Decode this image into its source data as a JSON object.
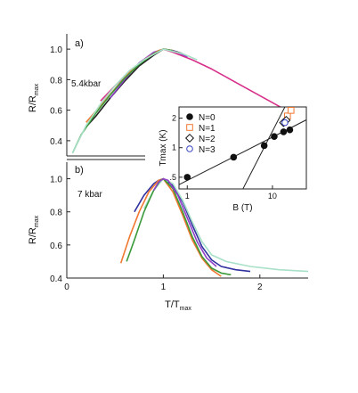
{
  "figure": {
    "panels": {
      "a": {
        "letter": "a)",
        "condition": "5.4kbar"
      },
      "b": {
        "letter": "b)",
        "condition": "7 kbar"
      }
    },
    "ylabel_main": "R/R",
    "ylabel_sub": "max",
    "xlabel_main": "T/T",
    "xlabel_sub": "max"
  },
  "chart_data": [
    {
      "panel": "a",
      "type": "line",
      "title": "",
      "condition": "5.4kbar",
      "ylabel": "R/Rmax",
      "ylim": [
        0.3,
        1.1
      ],
      "xlim": [
        0,
        2.5
      ],
      "yticks": [
        0.4,
        0.6,
        0.8,
        1.0
      ],
      "yticklabels": [
        "0.4",
        "0.6",
        "0.8",
        "1.0"
      ],
      "grid": false,
      "series": [
        {
          "color": "#d8308a",
          "points": [
            [
              0.35,
              0.66
            ],
            [
              0.5,
              0.76
            ],
            [
              0.65,
              0.85
            ],
            [
              0.8,
              0.93
            ],
            [
              0.9,
              0.97
            ],
            [
              1.0,
              1.0
            ],
            [
              1.1,
              0.98
            ],
            [
              1.3,
              0.93
            ],
            [
              1.5,
              0.87
            ],
            [
              1.7,
              0.8
            ],
            [
              1.9,
              0.73
            ],
            [
              2.1,
              0.66
            ],
            [
              2.3,
              0.59
            ],
            [
              2.45,
              0.54
            ]
          ]
        },
        {
          "color": "#222222",
          "points": [
            [
              0.2,
              0.49
            ],
            [
              0.3,
              0.56
            ],
            [
              0.45,
              0.68
            ],
            [
              0.6,
              0.79
            ],
            [
              0.75,
              0.89
            ],
            [
              0.9,
              0.96
            ],
            [
              1.0,
              1.0
            ],
            [
              1.1,
              0.99
            ],
            [
              1.2,
              0.97
            ]
          ]
        },
        {
          "color": "#9040c8",
          "points": [
            [
              0.45,
              0.68
            ],
            [
              0.6,
              0.8
            ],
            [
              0.75,
              0.91
            ],
            [
              0.9,
              0.98
            ],
            [
              1.0,
              1.0
            ],
            [
              1.1,
              0.99
            ],
            [
              1.25,
              0.95
            ]
          ]
        },
        {
          "color": "#f07830",
          "points": [
            [
              0.2,
              0.52
            ],
            [
              0.35,
              0.63
            ],
            [
              0.5,
              0.74
            ],
            [
              0.65,
              0.85
            ],
            [
              0.8,
              0.93
            ],
            [
              0.95,
              0.99
            ],
            [
              1.0,
              1.0
            ],
            [
              1.1,
              0.99
            ]
          ]
        },
        {
          "color": "#3a9a3a",
          "points": [
            [
              0.06,
              0.32
            ],
            [
              0.15,
              0.44
            ],
            [
              0.3,
              0.58
            ],
            [
              0.45,
              0.7
            ],
            [
              0.6,
              0.81
            ],
            [
              0.75,
              0.9
            ],
            [
              0.9,
              0.97
            ],
            [
              1.0,
              1.0
            ],
            [
              1.1,
              0.99
            ]
          ]
        },
        {
          "color": "#a8e0c8",
          "points": [
            [
              0.06,
              0.32
            ],
            [
              0.2,
              0.5
            ],
            [
              0.35,
              0.64
            ],
            [
              0.5,
              0.76
            ],
            [
              0.65,
              0.86
            ],
            [
              0.8,
              0.93
            ],
            [
              1.0,
              1.0
            ],
            [
              1.2,
              0.97
            ],
            [
              1.35,
              0.93
            ]
          ]
        }
      ]
    },
    {
      "panel": "b",
      "type": "line",
      "title": "",
      "condition": "7 kbar",
      "xlabel": "T/Tmax",
      "ylabel": "R/Rmax",
      "xlim": [
        0,
        2.5
      ],
      "ylim": [
        0.4,
        1.1
      ],
      "xticks": [
        0,
        1,
        2
      ],
      "xticklabels": [
        "0",
        "1",
        "2"
      ],
      "yticks": [
        0.4,
        0.6,
        0.8,
        1.0
      ],
      "yticklabels": [
        "0.4",
        "0.6",
        "0.8",
        "1.0"
      ],
      "grid": false,
      "series": [
        {
          "color": "#3030a0",
          "points": [
            [
              0.7,
              0.8
            ],
            [
              0.8,
              0.9
            ],
            [
              0.9,
              0.97
            ],
            [
              0.95,
              0.99
            ],
            [
              1.0,
              1.0
            ],
            [
              1.1,
              0.96
            ],
            [
              1.2,
              0.86
            ],
            [
              1.3,
              0.72
            ],
            [
              1.4,
              0.59
            ],
            [
              1.5,
              0.51
            ],
            [
              1.6,
              0.47
            ],
            [
              1.75,
              0.45
            ],
            [
              1.9,
              0.44
            ]
          ]
        },
        {
          "color": "#a8e0c8",
          "points": [
            [
              0.8,
              0.82
            ],
            [
              0.9,
              0.93
            ],
            [
              1.0,
              1.0
            ],
            [
              1.1,
              0.97
            ],
            [
              1.2,
              0.87
            ],
            [
              1.3,
              0.74
            ],
            [
              1.4,
              0.62
            ],
            [
              1.5,
              0.54
            ],
            [
              1.65,
              0.5
            ],
            [
              1.9,
              0.47
            ],
            [
              2.2,
              0.45
            ],
            [
              2.5,
              0.44
            ]
          ]
        },
        {
          "color": "#f07830",
          "points": [
            [
              0.56,
              0.49
            ],
            [
              0.65,
              0.65
            ],
            [
              0.75,
              0.8
            ],
            [
              0.85,
              0.92
            ],
            [
              0.95,
              0.99
            ],
            [
              1.0,
              1.0
            ],
            [
              1.1,
              0.92
            ],
            [
              1.2,
              0.78
            ],
            [
              1.3,
              0.63
            ],
            [
              1.4,
              0.52
            ],
            [
              1.5,
              0.45
            ],
            [
              1.6,
              0.41
            ]
          ]
        },
        {
          "color": "#3a9a3a",
          "points": [
            [
              0.62,
              0.5
            ],
            [
              0.7,
              0.63
            ],
            [
              0.8,
              0.8
            ],
            [
              0.9,
              0.93
            ],
            [
              0.97,
              0.99
            ],
            [
              1.0,
              1.0
            ],
            [
              1.1,
              0.94
            ],
            [
              1.2,
              0.8
            ],
            [
              1.3,
              0.65
            ],
            [
              1.4,
              0.53
            ],
            [
              1.5,
              0.46
            ],
            [
              1.6,
              0.43
            ],
            [
              1.7,
              0.42
            ]
          ]
        },
        {
          "color": "#9040c8",
          "points": [
            [
              0.9,
              0.93
            ],
            [
              0.95,
              0.98
            ],
            [
              1.0,
              1.0
            ],
            [
              1.05,
              0.99
            ],
            [
              1.15,
              0.9
            ],
            [
              1.25,
              0.76
            ],
            [
              1.35,
              0.62
            ],
            [
              1.45,
              0.52
            ],
            [
              1.55,
              0.47
            ]
          ]
        }
      ]
    },
    {
      "panel": "inset",
      "type": "scatter",
      "title": "",
      "xlabel": "B (T)",
      "ylabel": "Tmax (K)",
      "xscale": "log",
      "yscale": "log",
      "xlim": [
        0.8,
        25
      ],
      "ylim": [
        0.38,
        2.6
      ],
      "xticks": [
        1,
        10
      ],
      "xticklabels": [
        "1",
        "10"
      ],
      "yticks": [
        0.5,
        1,
        2
      ],
      "yticklabels": [
        ".5",
        "1",
        "2"
      ],
      "legend_position": "upper-left",
      "series": [
        {
          "name": "N=0",
          "marker": "filled-circle",
          "color": "#111111",
          "points": [
            [
              1.0,
              0.5
            ],
            [
              3.5,
              0.8
            ],
            [
              8.0,
              1.05
            ],
            [
              10.5,
              1.3
            ],
            [
              13.5,
              1.45
            ],
            [
              16.0,
              1.52
            ]
          ]
        },
        {
          "name": "N=1",
          "marker": "open-square",
          "color": "#f07830",
          "points": [
            [
              15.0,
              2.1
            ],
            [
              16.5,
              2.4
            ]
          ]
        },
        {
          "name": "N=2",
          "marker": "open-diamond",
          "color": "#111111",
          "points": [
            [
              13.5,
              1.8
            ],
            [
              14.5,
              1.9
            ]
          ]
        },
        {
          "name": "N=3",
          "marker": "open-circle",
          "color": "#3040c0",
          "points": [
            [
              14.0,
              1.8
            ]
          ]
        }
      ],
      "fit_lines": [
        {
          "color": "#222222",
          "points": [
            [
              0.8,
              0.42
            ],
            [
              25,
              1.92
            ]
          ]
        },
        {
          "color": "#222222",
          "points": [
            [
              4.5,
              0.38
            ],
            [
              14,
              2.6
            ]
          ]
        }
      ]
    }
  ]
}
